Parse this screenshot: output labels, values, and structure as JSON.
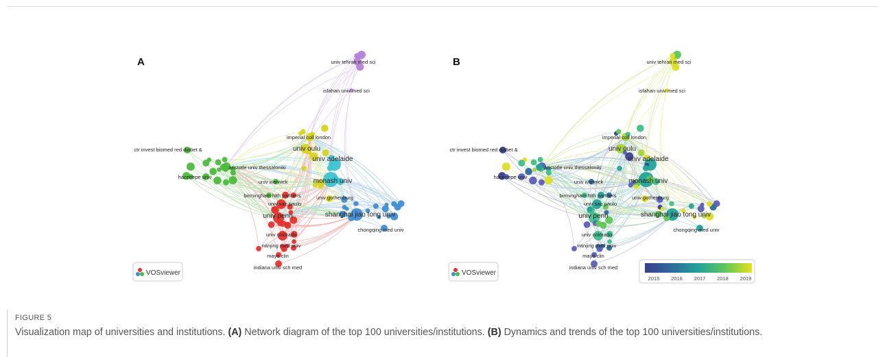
{
  "panels": [
    {
      "letter": "A",
      "labels": [
        "univ tehran med sci",
        "isfahan univ med sci",
        "imperial coll london",
        "univ oulu",
        "univ adelaide",
        "ctr invest biomed red diabet &",
        "aristotle univ thessaloniki",
        "hacettepe univ",
        "monash univ",
        "univ warwick",
        "birmingham hlth partners",
        "univ gothenburg",
        "univ sao paulo",
        "shanghai jiao tong univ",
        "univ penn",
        "chongqing med univ",
        "univ colorado",
        "nanjing med univ",
        "mayo clin",
        "indiana univ sch med"
      ],
      "logo": "VOSviewer"
    },
    {
      "letter": "B",
      "labels": [
        "univ tehran med sci",
        "isfahan univ med sci",
        "imperial coll london",
        "univ oulu",
        "univ adelaide",
        "ctr invest biomed red diabet &",
        "aristotle univ thessaloniki",
        "hacettepe univ",
        "monash univ",
        "univ warwick",
        "birmingham hlth partners",
        "univ gothenburg",
        "univ sao paulo",
        "shanghai jiao tong univ",
        "univ penn",
        "chongqing med univ",
        "univ colorado",
        "nanjing med univ",
        "mayo clin",
        "indiana univ sch med"
      ],
      "logo": "VOSviewer",
      "colorbar_ticks": [
        2015,
        2016,
        2017,
        2018,
        2019
      ]
    }
  ],
  "figure_label": "FIGURE 5",
  "caption": [
    "Visualization map of universities and institutions. ",
    "(A)",
    " Network diagram of the top 100 universities/institutions. ",
    "(B)",
    " Dynamics and trends of the top 100 universities/institutions."
  ]
}
